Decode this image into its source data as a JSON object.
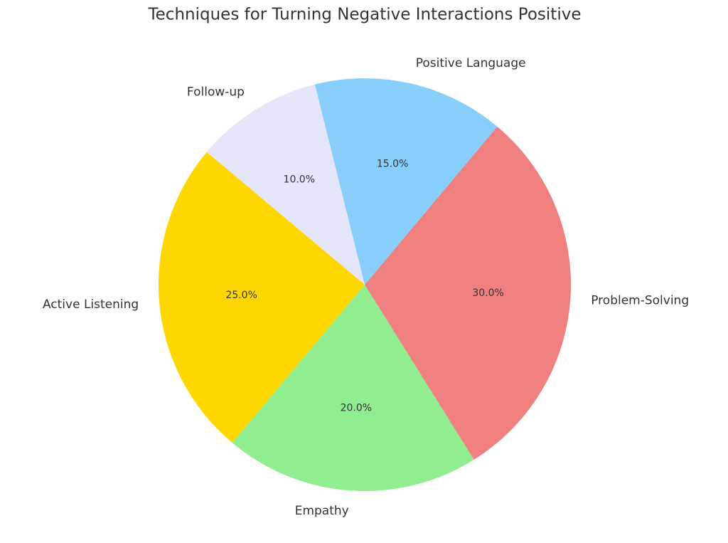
{
  "chart_data": {
    "type": "pie",
    "title": "Techniques for Turning Negative Interactions Positive",
    "categories": [
      "Active Listening",
      "Empathy",
      "Problem-Solving",
      "Positive Language",
      "Follow-up"
    ],
    "values": [
      25,
      20,
      30,
      15,
      10
    ],
    "value_labels": [
      "25.0%",
      "20.0%",
      "30.0%",
      "15.0%",
      "10.0%"
    ],
    "colors": [
      "#ffd700",
      "#90ee90",
      "#f08080",
      "#87cefa",
      "#e6e6fa"
    ],
    "startangle": 140,
    "counterclock": true
  }
}
